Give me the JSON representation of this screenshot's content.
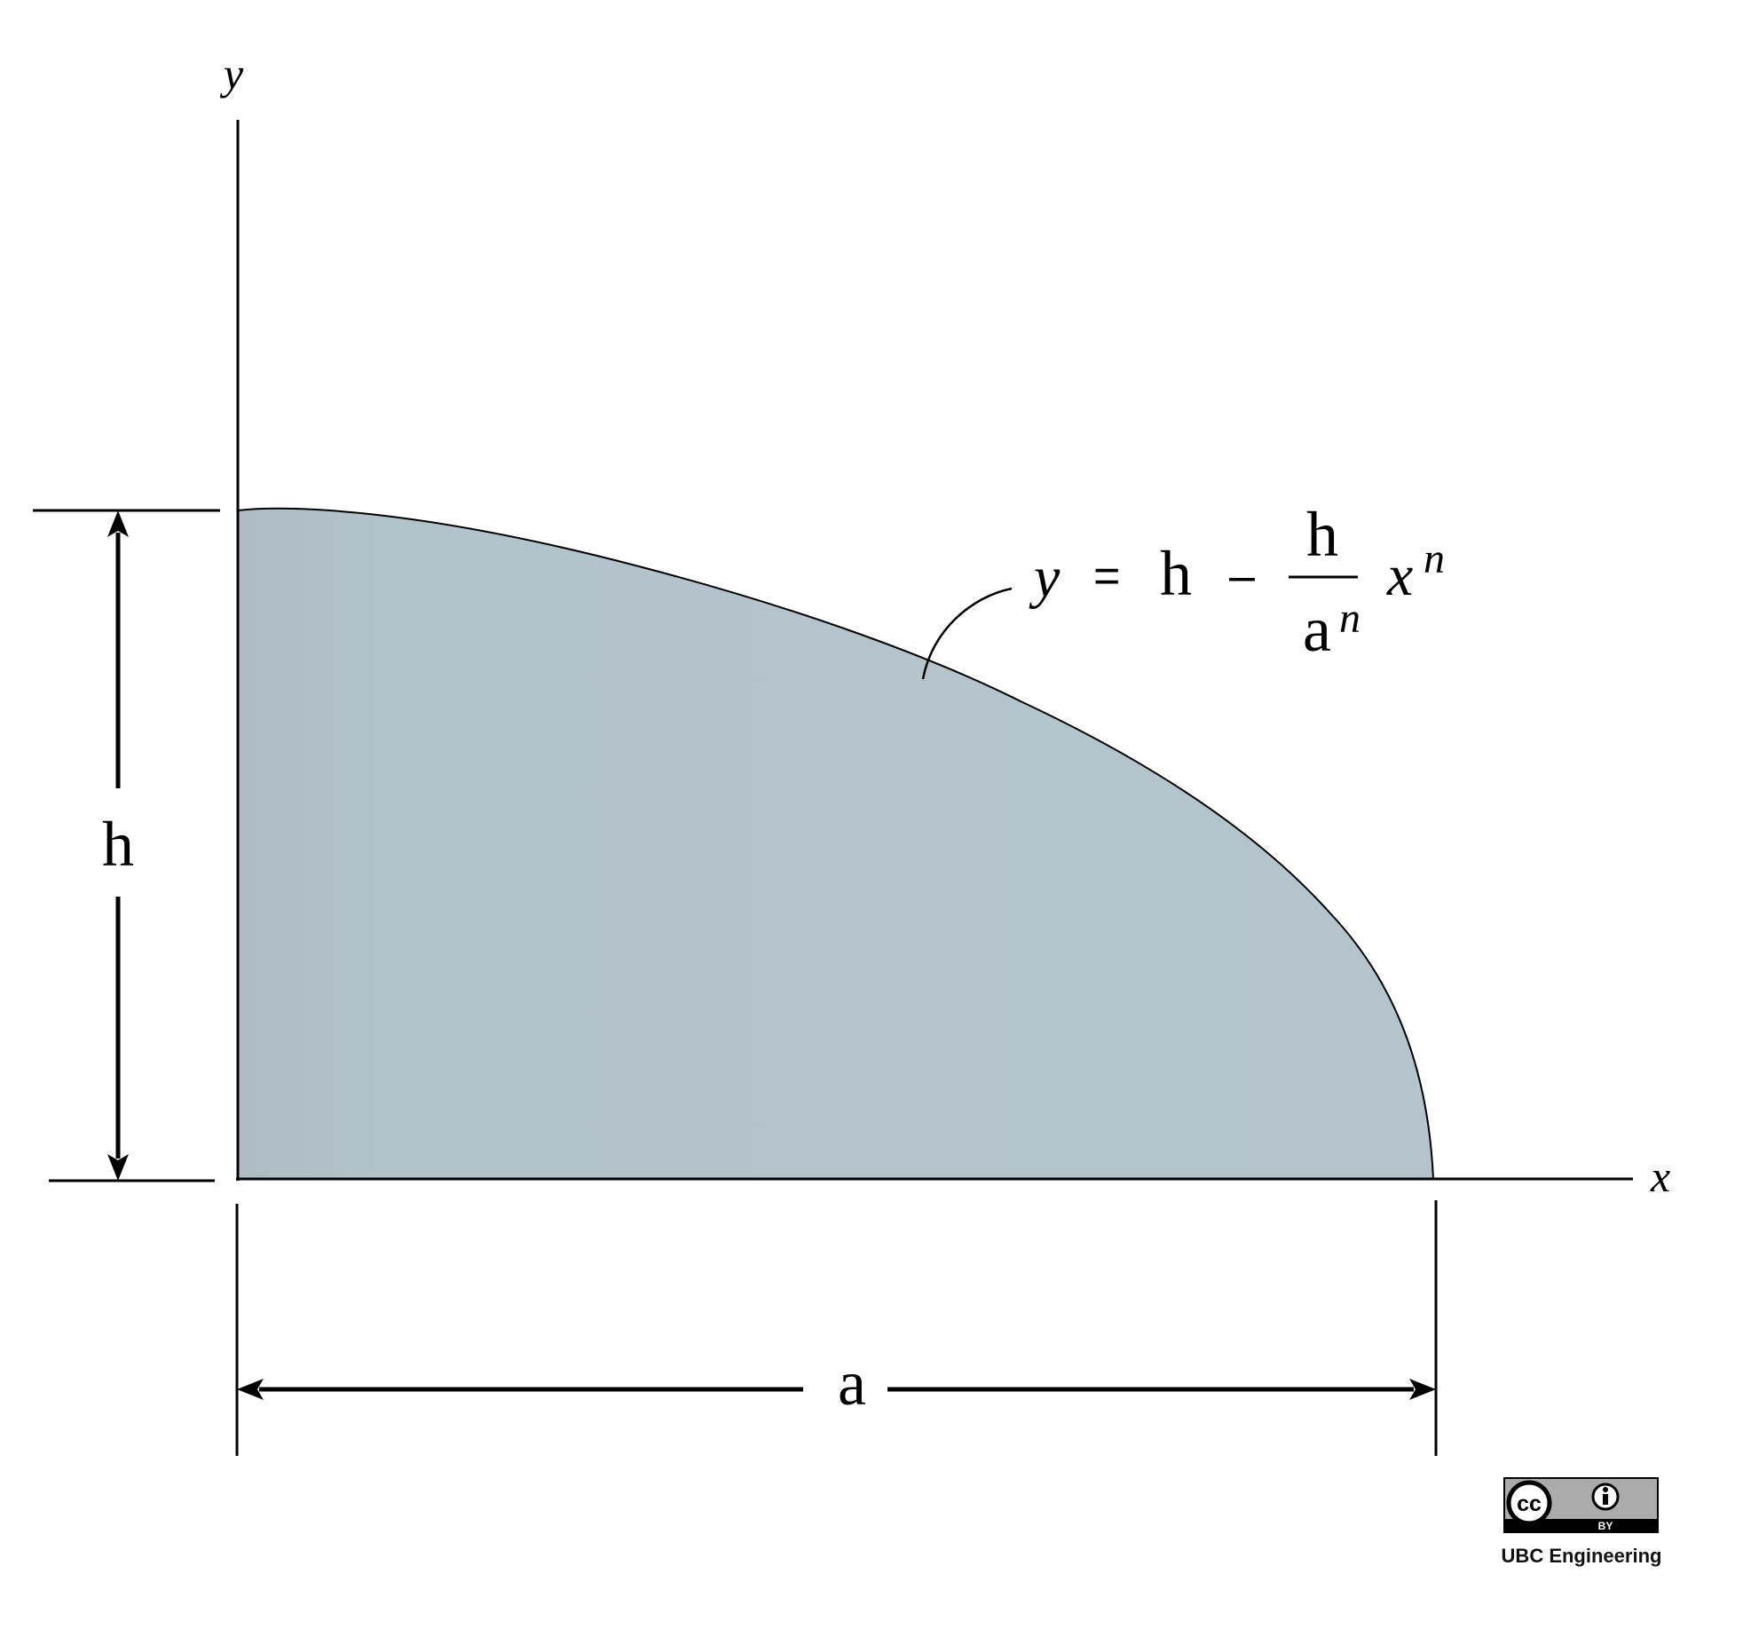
{
  "axes": {
    "x_label": "x",
    "y_label": "y"
  },
  "dimensions": {
    "height_label": "h",
    "width_label": "a"
  },
  "equation": {
    "lhs": "y",
    "equals": "=",
    "term": "h",
    "minus": "–",
    "frac_num": "h",
    "frac_den_base": "a",
    "frac_den_exp": "n",
    "var_base": "x",
    "var_exp": "n"
  },
  "license": {
    "badge_cc": "cc",
    "badge_by": "BY",
    "credit": "UBC Engineering",
    "icons": [
      "cc-icon",
      "attribution-icon"
    ]
  },
  "colors": {
    "fill": "#b3c3ca",
    "stroke": "#000000"
  }
}
